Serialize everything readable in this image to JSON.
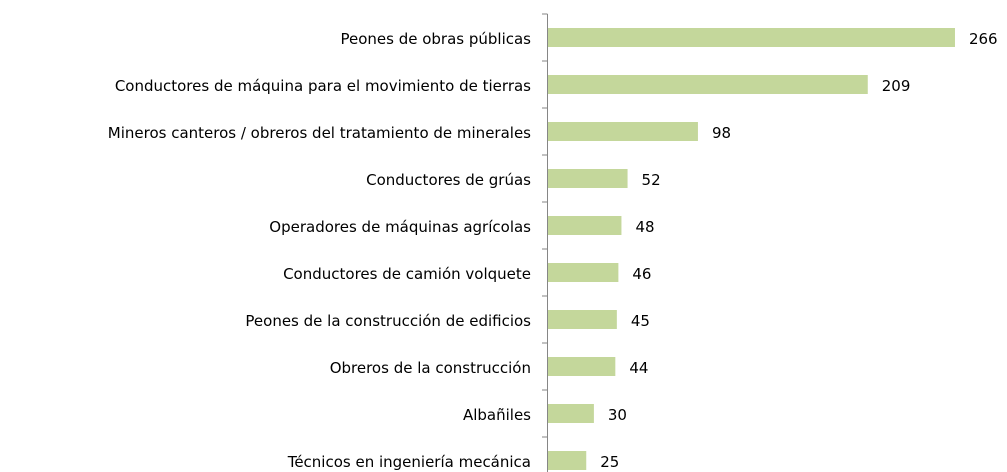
{
  "chart_data": {
    "type": "bar",
    "orientation": "horizontal",
    "categories": [
      "Peones de obras públicas",
      "Conductores de máquina para el movimiento de tierras",
      "Mineros canteros / obreros del tratamiento de minerales",
      "Conductores de grúas",
      "Operadores de máquinas agrícolas",
      "Conductores de camión volquete",
      "Peones de la construcción de edificios",
      "Obreros de la construcción",
      "Albañiles",
      "Técnicos en ingeniería mecánica"
    ],
    "values": [
      266,
      209,
      98,
      52,
      48,
      46,
      45,
      44,
      30,
      25
    ],
    "color": "#c4d79b",
    "xlim": [
      0,
      300
    ],
    "data_labels": true
  }
}
